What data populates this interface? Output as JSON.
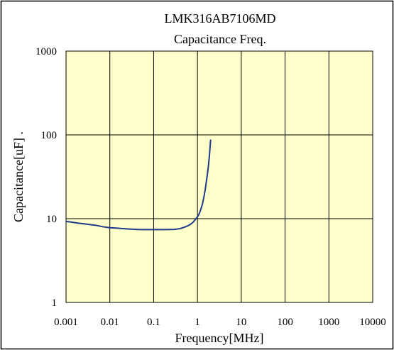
{
  "chart_data": {
    "type": "line",
    "title": "LMK316AB7106MD",
    "subtitle": "Capacitance Freq.",
    "xlabel": "Frequency[MHz]",
    "ylabel": "Capacitance[uF] .",
    "xscale": "log",
    "yscale": "log",
    "xlim": [
      0.001,
      10000
    ],
    "ylim": [
      1,
      1000
    ],
    "x_ticks": [
      {
        "value": 0.001,
        "label": "0.001"
      },
      {
        "value": 0.01,
        "label": "0.01"
      },
      {
        "value": 0.1,
        "label": "0.1"
      },
      {
        "value": 1,
        "label": "1"
      },
      {
        "value": 10,
        "label": "10"
      },
      {
        "value": 100,
        "label": "100"
      },
      {
        "value": 1000,
        "label": "1000"
      },
      {
        "value": 10000,
        "label": "10000"
      }
    ],
    "y_ticks": [
      {
        "value": 1,
        "label": "1"
      },
      {
        "value": 10,
        "label": "10"
      },
      {
        "value": 100,
        "label": "100"
      },
      {
        "value": 1000,
        "label": "1000"
      }
    ],
    "grid": true,
    "legend": "none",
    "colors": {
      "plot_background": "#ffffcc",
      "line": "#1f3a8c",
      "grid": "#000000"
    },
    "series": [
      {
        "x": [
          0.001,
          0.0015,
          0.002,
          0.003,
          0.005,
          0.007,
          0.01,
          0.015,
          0.02,
          0.03,
          0.05,
          0.1,
          0.2,
          0.3,
          0.4,
          0.5,
          0.6,
          0.7,
          0.8,
          0.9,
          1.0,
          1.1,
          1.2,
          1.3,
          1.4,
          1.5,
          1.6,
          1.7,
          1.8,
          1.85,
          1.9,
          1.95,
          2.0
        ],
        "y": [
          9.3,
          9.0,
          8.8,
          8.6,
          8.3,
          8.0,
          7.8,
          7.7,
          7.6,
          7.5,
          7.4,
          7.4,
          7.4,
          7.45,
          7.6,
          7.9,
          8.2,
          8.6,
          9.1,
          9.8,
          10.5,
          11.5,
          13.0,
          15.0,
          18.0,
          22.0,
          28.0,
          35.0,
          45.0,
          52.0,
          62.0,
          74.0,
          88.0
        ]
      }
    ]
  }
}
